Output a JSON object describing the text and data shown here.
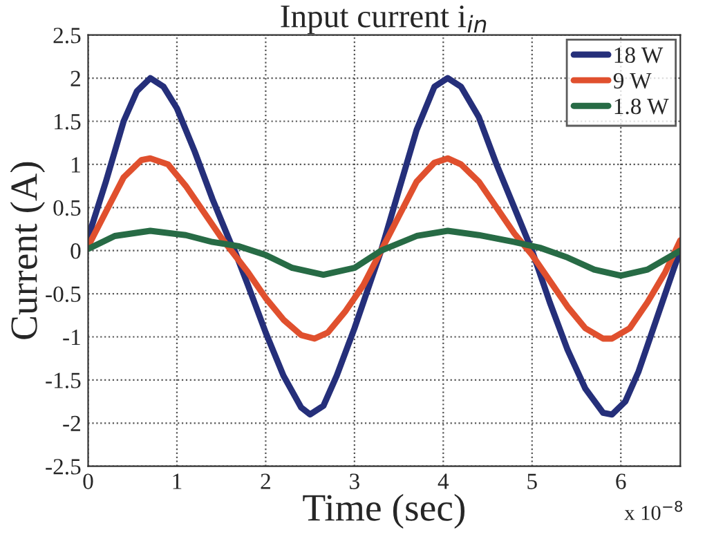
{
  "chart_data": {
    "type": "line",
    "title": "Input current i$_{in}$",
    "xlabel": "Time (sec)",
    "ylabel": "Current (A)",
    "annotations": [
      "x 10$^{−8}$"
    ],
    "xlim": [
      0,
      6.67
    ],
    "xticks": [
      0,
      1,
      2,
      3,
      4,
      5,
      6
    ],
    "ylim": [
      -2.5,
      2.5
    ],
    "yticks": [
      -2.5,
      -2,
      -1.5,
      -1,
      -0.5,
      0,
      0.5,
      1,
      1.5,
      2,
      2.5
    ],
    "grid": true,
    "legend": "top right",
    "line_style": "solid",
    "marker": "none",
    "series": [
      {
        "name": "18 W",
        "color": "#252f7a",
        "x": [
          0,
          0.2,
          0.4,
          0.55,
          0.7,
          0.85,
          1.0,
          1.2,
          1.4,
          1.6,
          1.65,
          1.8,
          2.0,
          2.2,
          2.4,
          2.5,
          2.65,
          2.8,
          3.0,
          3.2,
          3.3,
          3.5,
          3.7,
          3.9,
          4.05,
          4.2,
          4.4,
          4.6,
          4.8,
          5.0,
          5.2,
          5.4,
          5.6,
          5.8,
          5.9,
          6.05,
          6.2,
          6.4,
          6.6,
          6.67
        ],
        "values": [
          0.15,
          0.8,
          1.5,
          1.85,
          2.0,
          1.9,
          1.65,
          1.15,
          0.6,
          0.1,
          0.0,
          -0.4,
          -0.95,
          -1.45,
          -1.82,
          -1.9,
          -1.8,
          -1.45,
          -0.9,
          -0.3,
          0.0,
          0.7,
          1.4,
          1.9,
          2.0,
          1.9,
          1.55,
          1.0,
          0.5,
          0.0,
          -0.6,
          -1.15,
          -1.6,
          -1.88,
          -1.9,
          -1.75,
          -1.4,
          -0.8,
          -0.2,
          0.0
        ]
      },
      {
        "name": "9 W",
        "color": "#e0502e",
        "x": [
          0,
          0.2,
          0.4,
          0.6,
          0.7,
          0.9,
          1.1,
          1.3,
          1.5,
          1.65,
          1.8,
          2.0,
          2.2,
          2.4,
          2.55,
          2.7,
          2.9,
          3.1,
          3.3,
          3.5,
          3.7,
          3.9,
          4.05,
          4.2,
          4.4,
          4.6,
          4.8,
          5.0,
          5.2,
          5.4,
          5.6,
          5.8,
          5.9,
          6.1,
          6.3,
          6.5,
          6.67
        ],
        "values": [
          0.05,
          0.45,
          0.85,
          1.05,
          1.07,
          1.0,
          0.75,
          0.45,
          0.15,
          -0.05,
          -0.25,
          -0.55,
          -0.8,
          -0.98,
          -1.02,
          -0.95,
          -0.7,
          -0.4,
          0.0,
          0.4,
          0.8,
          1.02,
          1.07,
          1.0,
          0.8,
          0.5,
          0.2,
          -0.05,
          -0.35,
          -0.65,
          -0.9,
          -1.02,
          -1.02,
          -0.9,
          -0.6,
          -0.25,
          0.12
        ]
      },
      {
        "name": "1.8 W",
        "color": "#276b45",
        "x": [
          0,
          0.3,
          0.7,
          1.1,
          1.4,
          1.7,
          2.0,
          2.3,
          2.65,
          3.0,
          3.3,
          3.7,
          4.05,
          4.4,
          4.8,
          5.1,
          5.4,
          5.7,
          6.0,
          6.3,
          6.67
        ],
        "values": [
          0.02,
          0.17,
          0.23,
          0.18,
          0.1,
          0.05,
          -0.05,
          -0.2,
          -0.28,
          -0.2,
          0.0,
          0.17,
          0.23,
          0.18,
          0.1,
          0.03,
          -0.08,
          -0.22,
          -0.29,
          -0.22,
          0.0
        ]
      }
    ]
  }
}
